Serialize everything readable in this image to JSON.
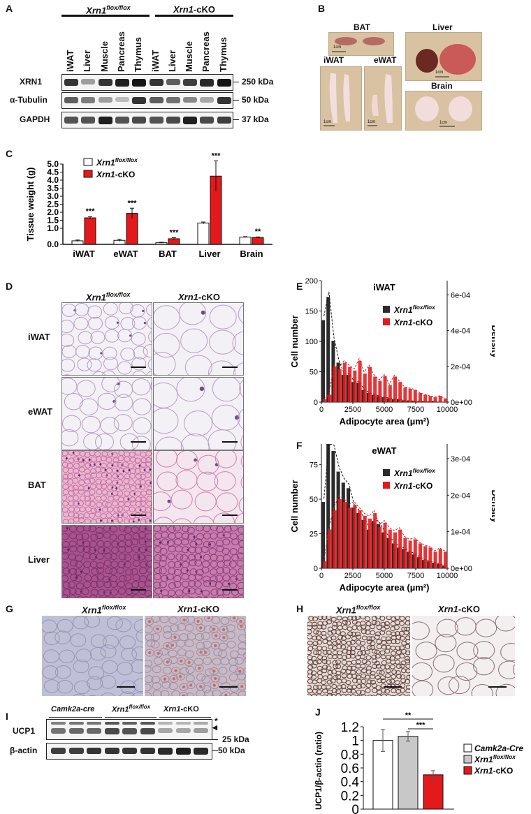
{
  "panels": {
    "A": "A",
    "B": "B",
    "C": "C",
    "D": "D",
    "E": "E",
    "F": "F",
    "G": "G",
    "H": "H",
    "I": "I",
    "J": "J"
  },
  "genotype": {
    "gene": "Xrn1",
    "flox_sup": "flox/flox",
    "cko_suffix": "-cKO",
    "cre_gene": "Camk2a",
    "cre_suffix": "-cre",
    "cre_suffix_J": "-Cre"
  },
  "panelA": {
    "lanes": [
      "iWAT",
      "Liver",
      "Muscle",
      "Pancreas",
      "Thymus",
      "iWAT",
      "Liver",
      "Muscle",
      "Pancreas",
      "Thymus"
    ],
    "blots": [
      {
        "name": "XRN1",
        "kda": "250 kDa"
      },
      {
        "name": "α-Tubulin",
        "kda": "50 kDa"
      },
      {
        "name": "GAPDH",
        "kda": "37 kDa"
      }
    ],
    "band_intensity": [
      [
        0.85,
        0.35,
        0.85,
        0.95,
        1.0,
        0.85,
        0.65,
        0.8,
        0.9,
        1.0
      ],
      [
        0.65,
        0.5,
        0.35,
        0.2,
        0.85,
        0.65,
        0.55,
        0.45,
        0.3,
        0.85
      ],
      [
        0.7,
        0.7,
        0.95,
        0.7,
        0.75,
        0.7,
        0.75,
        0.95,
        0.75,
        0.8
      ]
    ]
  },
  "panelB": {
    "labels": {
      "bat": "BAT",
      "liver": "Liver",
      "iwat": "iWAT",
      "ewat": "eWAT",
      "brain": "Brain"
    },
    "scale": "1cm"
  },
  "panelC": {
    "chart_data": {
      "type": "bar",
      "categories": [
        "iWAT",
        "eWAT",
        "BAT",
        "Liver",
        "Brain"
      ],
      "series": [
        {
          "name": "Xrn1 flox/flox",
          "values": [
            0.22,
            0.25,
            0.1,
            1.33,
            0.45
          ],
          "errors": [
            0.05,
            0.07,
            0.03,
            0.06,
            0.03
          ],
          "color": "#ffffff"
        },
        {
          "name": "Xrn1-cKO",
          "values": [
            1.65,
            1.93,
            0.35,
            4.25,
            0.43
          ],
          "errors": [
            0.08,
            0.32,
            0.07,
            0.95,
            0.03
          ],
          "color": "#e3191b"
        }
      ],
      "significance": [
        "***",
        "***",
        "***",
        "***",
        "**"
      ],
      "ylabel": "Tissue weight (g)",
      "ylim": [
        0,
        5
      ],
      "yticks": [
        "0.0",
        "1.0",
        "1.5",
        "2.0",
        "2.5",
        "3.0",
        "3.5",
        "4.0",
        "4.5",
        "5.0"
      ],
      "ytick_values": [
        0,
        1,
        1.5,
        2,
        2.5,
        3,
        3.5,
        4,
        4.5,
        5
      ],
      "yticks_minor": [
        "0.5"
      ],
      "legend": "top-left"
    }
  },
  "panelD": {
    "rows": [
      "iWAT",
      "eWAT",
      "BAT",
      "Liver"
    ]
  },
  "panelE": {
    "chart_data": {
      "type": "bar",
      "title": "iWAT",
      "xlabel": "Adipocyte area (µm²)",
      "ylabel": "Cell number",
      "ylabel_right": "Density",
      "xlim": [
        0,
        10000
      ],
      "ylim": [
        0,
        200
      ],
      "xticks": [
        "0",
        "2500",
        "5000",
        "7500",
        "10000"
      ],
      "yticks": [
        "0",
        "50",
        "100",
        "150",
        "200"
      ],
      "yticks_right": [
        "0e+00",
        "2e-04",
        "4e-04",
        "6e-04"
      ],
      "bin_width": 400,
      "series": [
        {
          "name": "Xrn1 flox/flox",
          "color": "#2b2b2b",
          "values": [
            135,
            173,
            101,
            65,
            45,
            45,
            33,
            32,
            20,
            15,
            12,
            10,
            8,
            6,
            5,
            4,
            3,
            2,
            2,
            1,
            1,
            1,
            1,
            0,
            0
          ]
        },
        {
          "name": "Xrn1-cKO",
          "color": "#e3191b",
          "values": [
            5,
            12,
            58,
            54,
            65,
            58,
            52,
            68,
            47,
            58,
            42,
            35,
            43,
            28,
            42,
            33,
            24,
            22,
            20,
            15,
            12,
            10,
            8,
            10,
            6
          ]
        }
      ],
      "legend": "top-right"
    }
  },
  "panelF": {
    "chart_data": {
      "type": "bar",
      "title": "eWAT",
      "xlabel": "Adipocyte area (µm²)",
      "ylabel": "Cell number",
      "ylabel_right": "Density",
      "xlim": [
        0,
        10000
      ],
      "ylim": [
        0,
        90
      ],
      "xticks": [
        "0",
        "2500",
        "5000",
        "7500",
        "10000"
      ],
      "yticks": [
        "0",
        "25",
        "50",
        "75"
      ],
      "yticks_right": [
        "0e+00",
        "1e-04",
        "2e-04",
        "3e-04"
      ],
      "bin_width": 400,
      "series": [
        {
          "name": "Xrn1 flox/flox",
          "color": "#2b2b2b",
          "values": [
            48,
            90,
            85,
            70,
            62,
            58,
            44,
            40,
            35,
            28,
            34,
            32,
            26,
            22,
            18,
            15,
            14,
            12,
            10,
            8,
            6,
            5,
            4,
            3,
            2
          ]
        },
        {
          "name": "Xrn1-cKO",
          "color": "#e3191b",
          "values": [
            5,
            28,
            42,
            50,
            48,
            44,
            46,
            42,
            38,
            36,
            40,
            30,
            33,
            28,
            26,
            28,
            22,
            20,
            21,
            18,
            16,
            15,
            12,
            14,
            12
          ]
        }
      ],
      "legend": "top-right"
    }
  },
  "panelI": {
    "groups": [
      "Camk2a-cre",
      "Xrn1 flox/flox",
      "Xrn1-cKO"
    ],
    "rows": [
      {
        "name": "UCP1",
        "kda": "25 kDa"
      },
      {
        "name": "β-actin",
        "kda": "50 kDa"
      }
    ],
    "markers": {
      "star": "*",
      "arrow": "◀"
    },
    "band_intensity": [
      [
        0.55,
        0.6,
        0.6,
        0.75,
        0.7,
        0.75,
        0.3,
        0.3,
        0.35
      ],
      [
        0.8,
        0.8,
        0.85,
        0.85,
        0.85,
        0.85,
        0.9,
        0.95,
        0.9
      ]
    ]
  },
  "panelJ": {
    "chart_data": {
      "type": "bar",
      "categories": [
        "Camk2a-Cre",
        "Xrn1 flox/flox",
        "Xrn1-cKO"
      ],
      "values": [
        1.0,
        1.06,
        0.5
      ],
      "errors": [
        0.16,
        0.07,
        0.06
      ],
      "colors": [
        "#ffffff",
        "#c8c8c8",
        "#e3191b"
      ],
      "ylabel": "UCP1/β-actin (ratio)",
      "ylim": [
        0,
        1.2
      ],
      "yticks": [
        "0",
        "0.2",
        "0.4",
        "0.6",
        "0.8",
        "1",
        "1.2"
      ],
      "ytick_values": [
        0,
        0.2,
        0.4,
        0.6,
        0.8,
        1.0,
        1.2
      ],
      "significance": [
        {
          "pair": [
            0,
            2
          ],
          "label": "**"
        },
        {
          "pair": [
            1,
            2
          ],
          "label": "***"
        }
      ],
      "legend": "right"
    }
  }
}
